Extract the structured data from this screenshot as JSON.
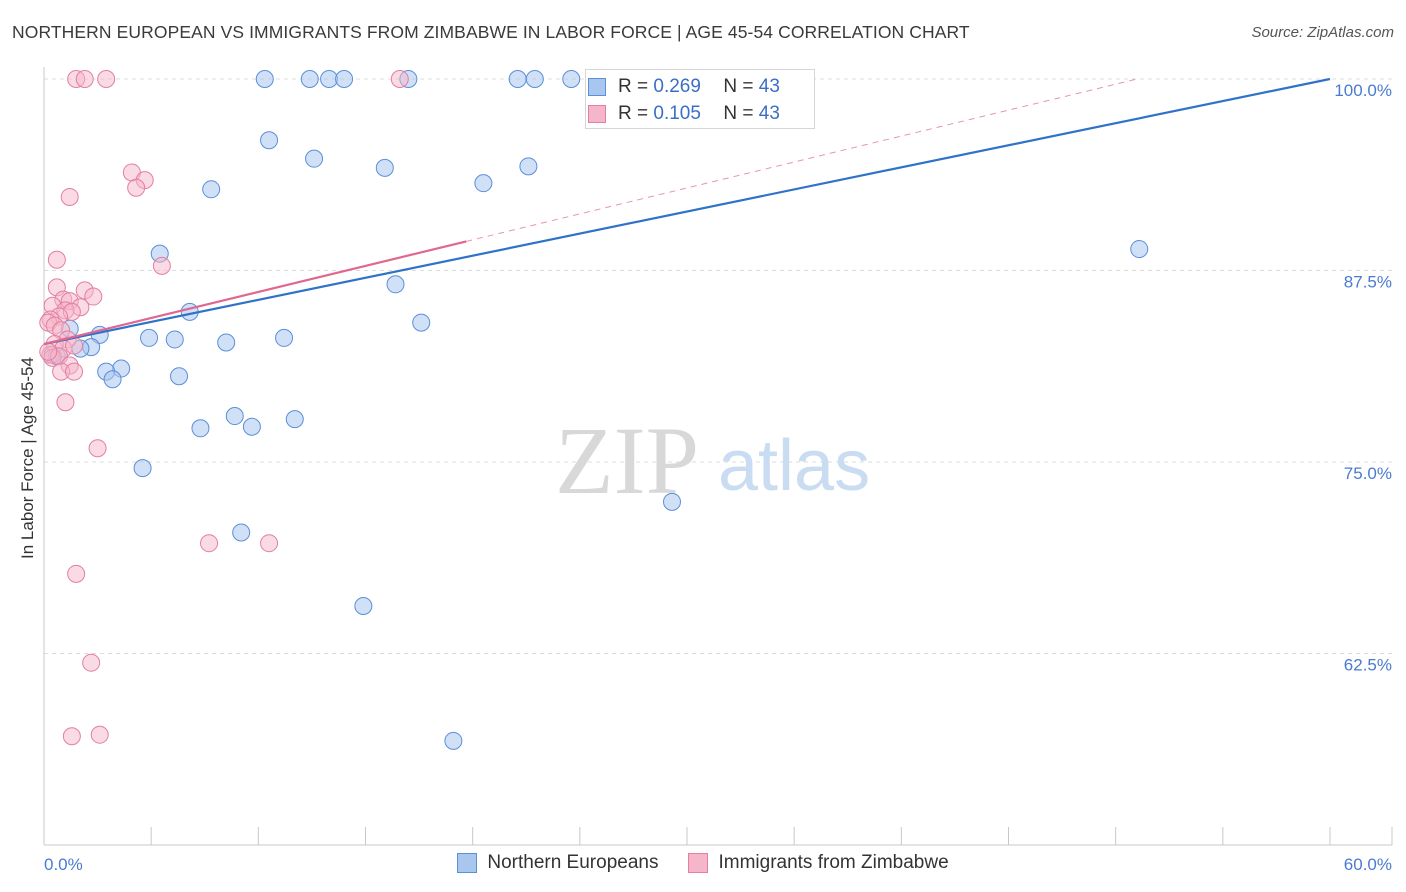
{
  "title": "NORTHERN EUROPEAN VS IMMIGRANTS FROM ZIMBABWE IN LABOR FORCE | AGE 45-54 CORRELATION CHART",
  "source": "Source: ZipAtlas.com",
  "watermark": {
    "zip": "ZIP",
    "atlas": "atlas"
  },
  "legend_stats": [
    {
      "r_label": "R =",
      "r_value": "0.269",
      "n_label": "N =",
      "n_value": "43"
    },
    {
      "r_label": "R =",
      "r_value": "0.105",
      "n_label": "N =",
      "n_value": "43"
    }
  ],
  "colors": {
    "blue_fill": "#a9c6ef",
    "blue_stroke": "#5b8fd8",
    "blue_line": "#2f72c9",
    "pink_fill": "#f5b6ca",
    "pink_stroke": "#e27fa2",
    "pink_line": "#e0678f",
    "grid": "#dcdcdc",
    "tick_text": "#4a7bd0"
  },
  "chart_data": {
    "type": "scatter",
    "title": "NORTHERN EUROPEAN VS IMMIGRANTS FROM ZIMBABWE IN LABOR FORCE | AGE 45-54 CORRELATION CHART",
    "xlabel": "",
    "ylabel": "In Labor Force | Age 45-54",
    "xlim": [
      0,
      60
    ],
    "ylim": [
      50.5,
      101
    ],
    "x_tick_labels": [
      "0.0%",
      "60.0%"
    ],
    "y_ticks": [
      62.5,
      75.0,
      87.5,
      100.0
    ],
    "y_tick_labels": [
      "62.5%",
      "75.0%",
      "87.5%",
      "100.0%"
    ],
    "grid": true,
    "series": [
      {
        "name": "Northern Europeans",
        "color": "blue",
        "R": 0.269,
        "N": 43,
        "points": [
          [
            10.3,
            100
          ],
          [
            12.4,
            100
          ],
          [
            13.3,
            100
          ],
          [
            14.0,
            100
          ],
          [
            17.0,
            100
          ],
          [
            22.1,
            100
          ],
          [
            22.9,
            100
          ],
          [
            24.6,
            100
          ],
          [
            26.1,
            100
          ],
          [
            10.5,
            96.0
          ],
          [
            12.6,
            94.8
          ],
          [
            15.9,
            94.2
          ],
          [
            20.5,
            93.2
          ],
          [
            22.6,
            94.3
          ],
          [
            7.8,
            92.8
          ],
          [
            51.1,
            88.9
          ],
          [
            5.4,
            88.6
          ],
          [
            16.4,
            86.6
          ],
          [
            6.8,
            84.8
          ],
          [
            17.6,
            84.1
          ],
          [
            1.2,
            83.7
          ],
          [
            2.6,
            83.3
          ],
          [
            4.9,
            83.1
          ],
          [
            6.1,
            83.0
          ],
          [
            8.5,
            82.8
          ],
          [
            11.2,
            83.1
          ],
          [
            2.2,
            82.5
          ],
          [
            1.7,
            82.4
          ],
          [
            0.4,
            82.0
          ],
          [
            0.6,
            81.9
          ],
          [
            3.6,
            81.1
          ],
          [
            2.9,
            80.9
          ],
          [
            6.3,
            80.6
          ],
          [
            3.2,
            80.4
          ],
          [
            8.9,
            78.0
          ],
          [
            9.7,
            77.3
          ],
          [
            11.7,
            77.8
          ],
          [
            7.3,
            77.2
          ],
          [
            4.6,
            74.6
          ],
          [
            29.3,
            72.4
          ],
          [
            9.2,
            70.4
          ],
          [
            14.9,
            65.6
          ],
          [
            19.1,
            56.8
          ]
        ],
        "trend": {
          "x": [
            0,
            60
          ],
          "y": [
            82.7,
            100.0
          ],
          "style": "solid"
        }
      },
      {
        "name": "Immigrants from Zimbabwe",
        "color": "pink",
        "R": 0.105,
        "N": 43,
        "points": [
          [
            1.5,
            100
          ],
          [
            1.9,
            100
          ],
          [
            2.9,
            100
          ],
          [
            16.6,
            100
          ],
          [
            4.1,
            93.9
          ],
          [
            4.7,
            93.4
          ],
          [
            4.3,
            92.9
          ],
          [
            1.2,
            92.3
          ],
          [
            0.6,
            88.2
          ],
          [
            5.5,
            87.8
          ],
          [
            0.6,
            86.4
          ],
          [
            1.9,
            86.2
          ],
          [
            2.3,
            85.8
          ],
          [
            0.9,
            85.6
          ],
          [
            1.2,
            85.5
          ],
          [
            0.4,
            85.2
          ],
          [
            1.7,
            85.1
          ],
          [
            1.0,
            84.9
          ],
          [
            1.3,
            84.8
          ],
          [
            0.7,
            84.5
          ],
          [
            0.3,
            84.3
          ],
          [
            0.2,
            84.1
          ],
          [
            0.5,
            83.9
          ],
          [
            0.8,
            83.6
          ],
          [
            1.1,
            83.0
          ],
          [
            0.5,
            82.7
          ],
          [
            0.9,
            82.4
          ],
          [
            1.4,
            82.6
          ],
          [
            0.3,
            82.0
          ],
          [
            0.4,
            81.8
          ],
          [
            0.7,
            81.9
          ],
          [
            1.2,
            81.3
          ],
          [
            0.8,
            80.9
          ],
          [
            1.4,
            80.9
          ],
          [
            1.0,
            78.9
          ],
          [
            2.5,
            75.9
          ],
          [
            7.7,
            69.7
          ],
          [
            10.5,
            69.7
          ],
          [
            1.5,
            67.7
          ],
          [
            2.2,
            61.9
          ],
          [
            1.3,
            57.1
          ],
          [
            2.6,
            57.2
          ],
          [
            0.2,
            82.2
          ]
        ],
        "trend": {
          "x": [
            0,
            19.7
          ],
          "y": [
            82.7,
            89.4
          ],
          "style": "solid",
          "extended": {
            "x": [
              19.7,
              51
            ],
            "y": [
              89.4,
              100.0
            ],
            "style": "dashed"
          }
        }
      }
    ]
  }
}
